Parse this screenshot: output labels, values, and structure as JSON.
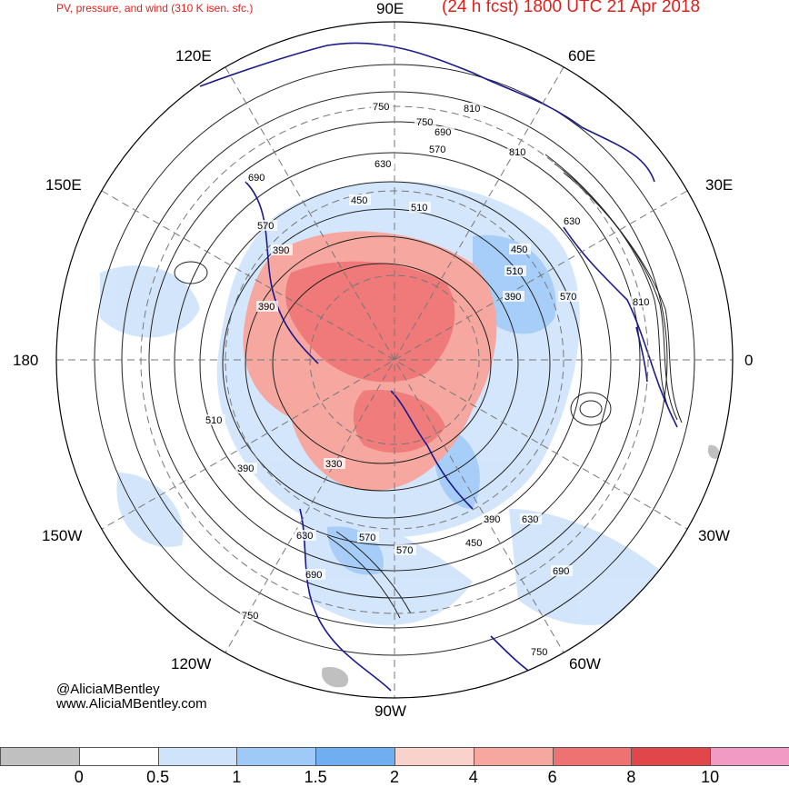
{
  "header": {
    "left_title": "PV, pressure, and wind (310 K isen. sfc.)",
    "right_title": "(24 h fcst) 1800 UTC 21 Apr 2018"
  },
  "longitude_labels": {
    "top": "90E",
    "top_left": "120E",
    "top_right": "60E",
    "upper_left": "150E",
    "upper_right": "30E",
    "left": "180",
    "right": "0",
    "lower_left": "150W",
    "lower_right": "30W",
    "bottom_left": "120W",
    "bottom_right": "60W",
    "bottom": "90W"
  },
  "contour_labels": [
    "750",
    "750",
    "810",
    "690",
    "570",
    "810",
    "630",
    "690",
    "450",
    "510",
    "630",
    "570",
    "390",
    "450",
    "510",
    "570",
    "810",
    "390",
    "390",
    "510",
    "390",
    "330",
    "630",
    "570",
    "570",
    "450",
    "390",
    "630",
    "690",
    "690",
    "750",
    "750"
  ],
  "credits": {
    "handle": "@AliciaMBentley",
    "website": "www.AliciaMBentley.com"
  },
  "colorbar": {
    "ticks": [
      "0",
      "0.5",
      "1",
      "1.5",
      "2",
      "4",
      "6",
      "8",
      "10"
    ],
    "colors": [
      "#c0c0c0",
      "#ffffff",
      "#cfe3fb",
      "#9fc9f7",
      "#6faef1",
      "#f9d2cb",
      "#f6a8a0",
      "#ef7273",
      "#e1464a",
      "#f19ac3"
    ]
  },
  "map_colors": {
    "ocean": "#ffffff",
    "pv_low": "#cfe3fb",
    "pv_mid": "#9fc9f7",
    "pv_high_red": "#f6a8a0",
    "pv_very_high": "#ef7273",
    "coastline": "#1a1a8c",
    "contour": "#222222",
    "grid": "#777777"
  }
}
